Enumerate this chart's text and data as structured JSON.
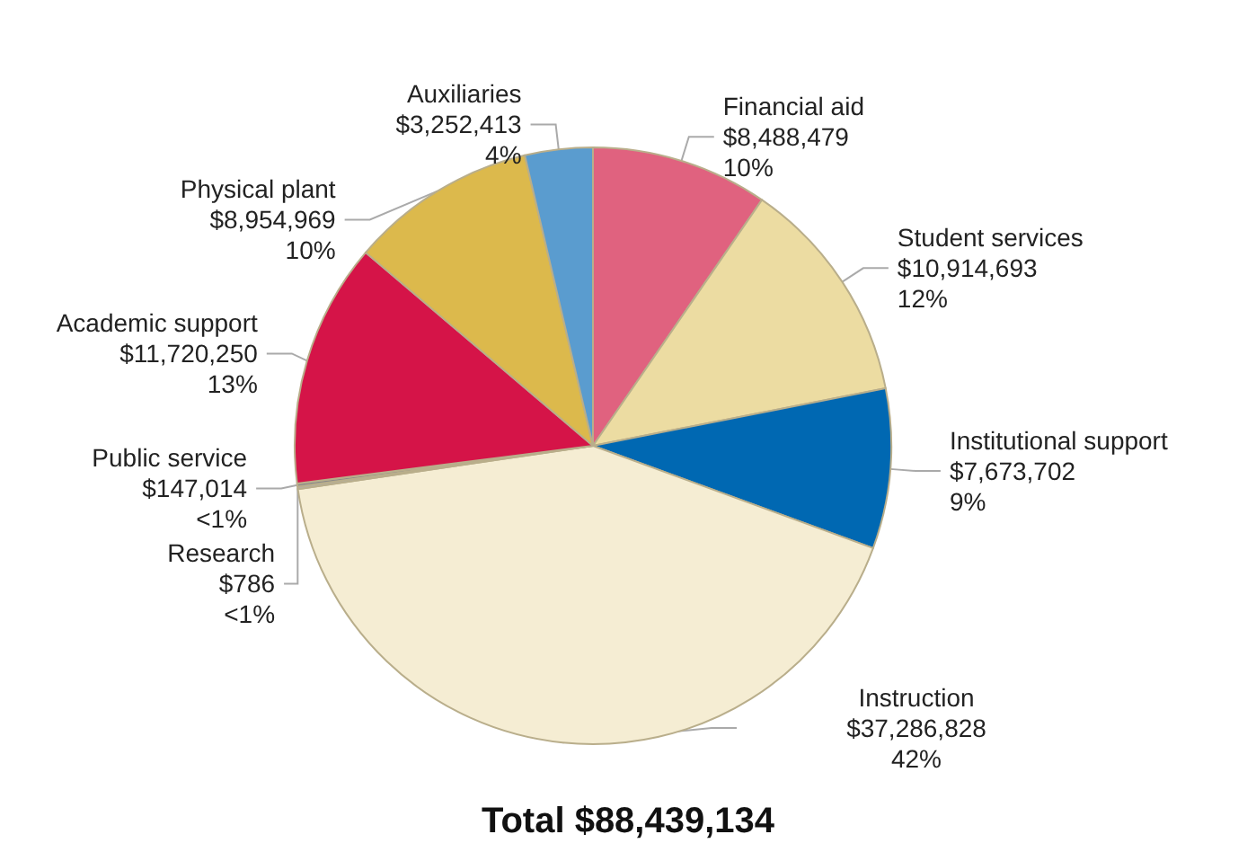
{
  "chart_data": {
    "type": "pie",
    "title": "Total $88,439,134",
    "categories": [
      "Financial aid",
      "Student services",
      "Institutional support",
      "Instruction",
      "Research",
      "Public service",
      "Academic support",
      "Physical plant",
      "Auxiliaries"
    ],
    "values": [
      8488479,
      10914693,
      7673702,
      37286828,
      786,
      147014,
      11720250,
      8954969,
      3252413
    ],
    "value_labels": [
      "$8,488,479\n10%",
      "$10,914,693\n12%",
      "$7,673,702\n9%",
      "$37,286,828\n42%",
      "$786\n<1%",
      "$147,014\n<1%",
      "$11,720,250\n13%",
      "$8,954,969\n10%",
      "$3,252,413\n4%"
    ],
    "colors": [
      "#e0627f",
      "#ecdca2",
      "#0068b2",
      "#f5edd3",
      "#b0b0b0",
      "#8a8a8a",
      "#d51448",
      "#dcb94c",
      "#5a9ccf"
    ],
    "legend": false
  }
}
